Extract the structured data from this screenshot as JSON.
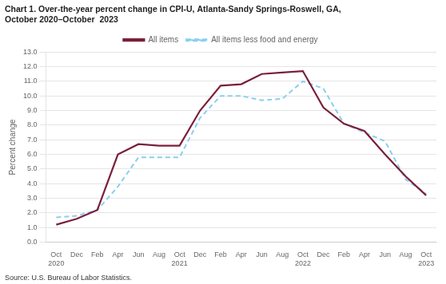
{
  "chart_data": {
    "type": "line",
    "title": "Chart 1. Over-the-year percent change in CPI-U, Atlanta-Sandy Springs-Roswell, GA,\nOctober 2020–October  2023",
    "ylabel": "Percent change",
    "source": "Source: U.S. Bureau of Labor Statistics.",
    "categories": [
      "Oct\n2020",
      "Dec",
      "Feb",
      "Apr",
      "Jun",
      "Aug",
      "Oct\n2021",
      "Dec",
      "Feb",
      "Apr",
      "Jun",
      "Aug",
      "Oct\n2022",
      "Dec",
      "Feb",
      "Apr",
      "Jun",
      "Aug",
      "Oct\n2023"
    ],
    "series": [
      {
        "name": "All items",
        "color": "#7B1F3A",
        "line_style": "solid",
        "values": [
          1.2,
          1.6,
          2.2,
          6.0,
          6.7,
          6.6,
          6.6,
          9.0,
          10.7,
          10.8,
          11.5,
          11.6,
          11.7,
          9.2,
          8.1,
          7.6,
          6.0,
          4.5,
          3.2
        ]
      },
      {
        "name": "All items less food and energy",
        "color": "#89CFF0",
        "line_style": "dashed",
        "values": [
          1.7,
          1.8,
          2.2,
          3.8,
          5.8,
          5.8,
          5.8,
          8.5,
          10.0,
          10.0,
          9.7,
          9.8,
          11.0,
          10.5,
          8.1,
          7.5,
          6.9,
          4.3,
          3.3
        ]
      }
    ],
    "ylim": [
      0.0,
      13.0
    ],
    "yticks": [
      {
        "value": 0,
        "label": "0.0"
      },
      {
        "value": 1,
        "label": "1.0"
      },
      {
        "value": 2,
        "label": "2.0"
      },
      {
        "value": 3,
        "label": "3.0"
      },
      {
        "value": 4,
        "label": "4.0"
      },
      {
        "value": 5,
        "label": "5.0"
      },
      {
        "value": 6,
        "label": "6.0"
      },
      {
        "value": 7,
        "label": "7.0"
      },
      {
        "value": 8,
        "label": "8.0"
      },
      {
        "value": 9,
        "label": "9.0"
      },
      {
        "value": 10,
        "label": "10.0"
      },
      {
        "value": 11,
        "label": "11.0"
      },
      {
        "value": 12,
        "label": "12.0"
      },
      {
        "value": 13,
        "label": "13.0"
      }
    ],
    "grid": "y",
    "legend": "top"
  }
}
